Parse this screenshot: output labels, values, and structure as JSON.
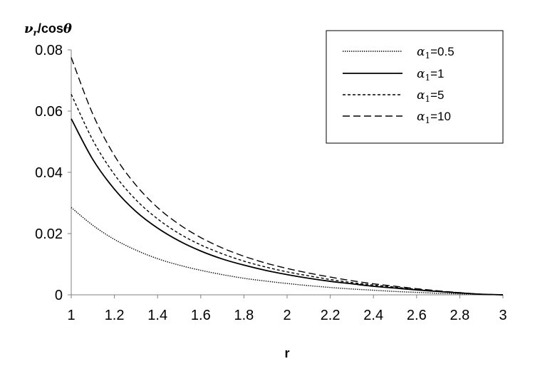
{
  "chart_data": {
    "type": "line",
    "title": "",
    "xlabel": "r",
    "ylabel": "v_r/cosθ",
    "ylabel_parts": {
      "main": "ν",
      "sub": "r",
      "rest": "/cos",
      "theta": "θ"
    },
    "xlim": [
      1,
      3
    ],
    "ylim": [
      0,
      0.08
    ],
    "x_ticks": [
      1,
      1.2,
      1.4,
      1.6,
      1.8,
      2,
      2.2,
      2.4,
      2.6,
      2.8,
      3
    ],
    "x_tick_labels": [
      "1",
      "1.2",
      "1.4",
      "1.6",
      "1.8",
      "2",
      "2.2",
      "2.4",
      "2.6",
      "2.8",
      "3"
    ],
    "y_ticks": [
      0,
      0.02,
      0.04,
      0.06,
      0.08
    ],
    "y_tick_labels": [
      "0",
      "0.02",
      "0.04",
      "0.06",
      "0.08"
    ],
    "grid": false,
    "legend_position": "top-right",
    "x": [
      1,
      1.1,
      1.2,
      1.3,
      1.4,
      1.5,
      1.6,
      1.7,
      1.8,
      1.9,
      2,
      2.1,
      2.2,
      2.3,
      2.4,
      2.5,
      2.6,
      2.7,
      2.8,
      2.9,
      3
    ],
    "series": [
      {
        "name": "α1=0.5",
        "legend_symbol": "α",
        "legend_sub": "1",
        "legend_value": "=0.5",
        "dash": "dotted",
        "values": [
          0.0285,
          0.0227,
          0.0181,
          0.0146,
          0.0118,
          0.0097,
          0.008,
          0.0066,
          0.0054,
          0.0045,
          0.0037,
          0.003,
          0.0024,
          0.0019,
          0.0015,
          0.0011,
          0.0008,
          0.0005,
          0.0003,
          0.0001,
          0
        ]
      },
      {
        "name": "α1=1",
        "legend_symbol": "α",
        "legend_sub": "1",
        "legend_value": "=1",
        "dash": "solid",
        "values": [
          0.0575,
          0.0442,
          0.0345,
          0.0272,
          0.0218,
          0.0176,
          0.0143,
          0.0117,
          0.0097,
          0.008,
          0.0066,
          0.0054,
          0.0044,
          0.0036,
          0.0028,
          0.0022,
          0.0016,
          0.0011,
          0.0006,
          0.0002,
          0
        ]
      },
      {
        "name": "α1=5",
        "legend_symbol": "α",
        "legend_sub": "1",
        "legend_value": "=5",
        "dash": "short-dash",
        "values": [
          0.0655,
          0.0505,
          0.0393,
          0.031,
          0.0248,
          0.02,
          0.0163,
          0.0134,
          0.011,
          0.0091,
          0.0075,
          0.0062,
          0.005,
          0.004,
          0.0032,
          0.0025,
          0.0018,
          0.0012,
          0.0007,
          0.0002,
          0
        ]
      },
      {
        "name": "α1=10",
        "legend_symbol": "α",
        "legend_sub": "1",
        "legend_value": "=10",
        "dash": "long-dash",
        "values": [
          0.0775,
          0.059,
          0.0455,
          0.0358,
          0.0285,
          0.023,
          0.0187,
          0.0153,
          0.0126,
          0.0104,
          0.0086,
          0.0071,
          0.0058,
          0.0046,
          0.0036,
          0.0028,
          0.002,
          0.0013,
          0.0007,
          0.0002,
          0
        ]
      }
    ]
  }
}
